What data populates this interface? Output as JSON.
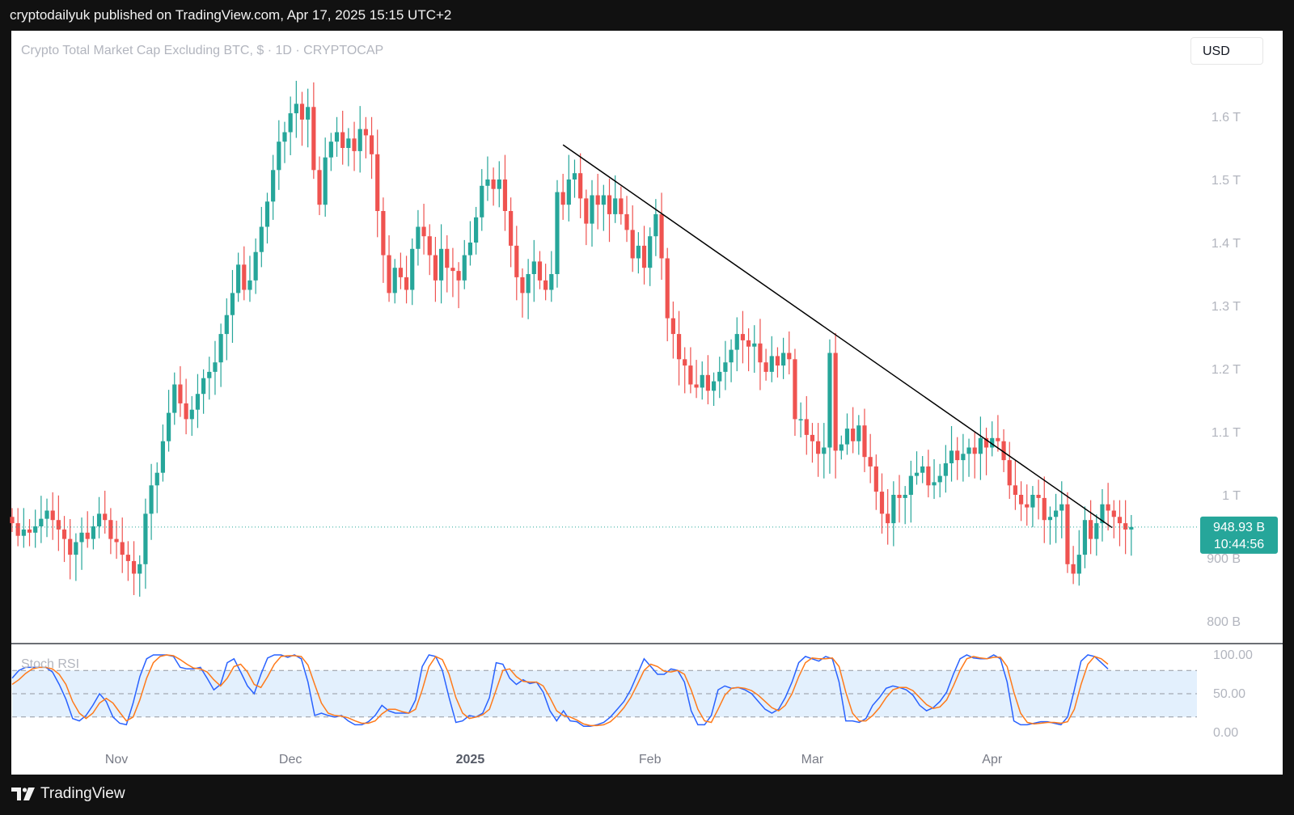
{
  "header": {
    "text": "cryptodailyuk published on TradingView.com, Apr 17, 2025 15:15 UTC+2"
  },
  "footer": {
    "brand": "TradingView",
    "logo_icon": "tradingview-logo-icon"
  },
  "toolbar": {
    "currency_label": "USD"
  },
  "colors": {
    "up": "#26a69a",
    "down": "#ef5350",
    "k_line": "#2962ff",
    "d_line": "#ff7a1a",
    "trendline": "#000000",
    "rsi_band": "#e3f0fd"
  },
  "chart_data": [
    {
      "type": "candlestick",
      "title": "Crypto Total Market Cap Excluding BTC, $ · 1D · CRYPTOCAP",
      "y_unit": "USD",
      "yticks": [
        {
          "v": 0.8,
          "label": "800 B"
        },
        {
          "v": 0.9,
          "label": "900 B"
        },
        {
          "v": 1.0,
          "label": "1 T"
        },
        {
          "v": 1.1,
          "label": "1.1 T"
        },
        {
          "v": 1.2,
          "label": "1.2 T"
        },
        {
          "v": 1.3,
          "label": "1.3 T"
        },
        {
          "v": 1.4,
          "label": "1.4 T"
        },
        {
          "v": 1.5,
          "label": "1.5 T"
        },
        {
          "v": 1.6,
          "label": "1.6 T"
        }
      ],
      "ylim": [
        0.775,
        1.685
      ],
      "y_scale": "trillions USD",
      "xticks": [
        {
          "i": 18,
          "label": "Nov",
          "bold": false
        },
        {
          "i": 48,
          "label": "Dec",
          "bold": false
        },
        {
          "i": 79,
          "label": "2025",
          "bold": true
        },
        {
          "i": 110,
          "label": "Feb",
          "bold": false
        },
        {
          "i": 138,
          "label": "Mar",
          "bold": false
        },
        {
          "i": 169,
          "label": "Apr",
          "bold": false
        }
      ],
      "last_price": {
        "value": 0.94893,
        "label": "948.93 B",
        "countdown": "10:44:56"
      },
      "trendline": {
        "from": {
          "i": 95,
          "v": 1.555
        },
        "to": {
          "i": 189,
          "v": 0.948
        }
      },
      "closes": [
        0.955,
        0.935,
        0.945,
        0.94,
        0.95,
        0.962,
        0.975,
        0.96,
        0.945,
        0.93,
        0.905,
        0.925,
        0.94,
        0.93,
        0.95,
        0.97,
        0.96,
        0.93,
        0.925,
        0.905,
        0.895,
        0.875,
        0.89,
        0.97,
        1.015,
        1.035,
        1.085,
        1.13,
        1.175,
        1.145,
        1.12,
        1.135,
        1.16,
        1.185,
        1.195,
        1.21,
        1.255,
        1.285,
        1.32,
        1.365,
        1.325,
        1.34,
        1.385,
        1.425,
        1.465,
        1.515,
        1.56,
        1.575,
        1.605,
        1.62,
        1.595,
        1.615,
        1.515,
        1.46,
        1.535,
        1.56,
        1.575,
        1.55,
        1.565,
        1.545,
        1.58,
        1.57,
        1.54,
        1.45,
        1.38,
        1.32,
        1.36,
        1.345,
        1.325,
        1.39,
        1.425,
        1.41,
        1.38,
        1.34,
        1.39,
        1.36,
        1.355,
        1.34,
        1.38,
        1.4,
        1.44,
        1.49,
        1.5,
        1.485,
        1.5,
        1.45,
        1.395,
        1.345,
        1.32,
        1.35,
        1.37,
        1.34,
        1.325,
        1.35,
        1.48,
        1.46,
        1.5,
        1.51,
        1.47,
        1.43,
        1.475,
        1.46,
        1.475,
        1.445,
        1.47,
        1.445,
        1.42,
        1.375,
        1.395,
        1.36,
        1.41,
        1.445,
        1.375,
        1.28,
        1.255,
        1.215,
        1.205,
        1.175,
        1.17,
        1.19,
        1.165,
        1.18,
        1.195,
        1.21,
        1.23,
        1.255,
        1.245,
        1.235,
        1.24,
        1.21,
        1.195,
        1.22,
        1.205,
        1.225,
        1.215,
        1.12,
        1.12,
        1.095,
        1.085,
        1.065,
        1.075,
        1.225,
        1.07,
        1.08,
        1.105,
        1.085,
        1.11,
        1.06,
        1.045,
        1.005,
        0.97,
        0.955,
        1.0,
        0.995,
        1.0,
        1.03,
        1.035,
        1.045,
        1.015,
        1.02,
        1.03,
        1.05,
        1.07,
        1.055,
        1.065,
        1.075,
        1.065,
        1.09,
        1.075,
        1.09,
        1.085,
        1.055,
        1.015,
        1.0,
        0.985,
        0.98,
        1.0,
        0.995,
        0.96,
        0.965,
        0.975,
        0.985,
        0.89,
        0.875,
        0.905,
        0.96,
        0.93,
        0.955,
        0.985,
        0.975,
        0.965,
        0.955,
        0.945,
        0.949
      ],
      "wick": 0.014
    },
    {
      "type": "line",
      "title": "Stoch RSI",
      "ylim": [
        0,
        100
      ],
      "yticks": [
        {
          "v": 100,
          "label": "100.00"
        },
        {
          "v": 50,
          "label": "50.00"
        },
        {
          "v": 0,
          "label": "0.00"
        }
      ],
      "band": [
        20,
        80
      ],
      "series": [
        {
          "key": "k",
          "values": [
            70,
            80,
            84,
            84,
            84,
            84,
            78,
            62,
            43,
            18,
            15,
            22,
            35,
            50,
            40,
            20,
            12,
            10,
            38,
            72,
            95,
            100,
            100,
            100,
            98,
            84,
            82,
            82,
            84,
            70,
            55,
            62,
            90,
            95,
            78,
            60,
            50,
            75,
            96,
            100,
            100,
            97,
            100,
            95,
            65,
            22,
            25,
            22,
            20,
            22,
            15,
            10,
            10,
            14,
            22,
            35,
            28,
            25,
            25,
            25,
            42,
            85,
            100,
            98,
            80,
            45,
            13,
            15,
            22,
            20,
            25,
            45,
            90,
            88,
            70,
            62,
            68,
            63,
            65,
            52,
            28,
            15,
            28,
            15,
            14,
            8,
            8,
            10,
            13,
            20,
            30,
            40,
            55,
            75,
            95,
            85,
            75,
            75,
            82,
            80,
            65,
            28,
            10,
            10,
            22,
            55,
            60,
            57,
            58,
            55,
            50,
            40,
            30,
            25,
            30,
            45,
            65,
            90,
            98,
            95,
            92,
            98,
            95,
            65,
            15,
            15,
            13,
            18,
            35,
            45,
            57,
            60,
            58,
            55,
            48,
            35,
            28,
            32,
            40,
            52,
            75,
            95,
            100,
            96,
            95,
            95,
            100,
            95,
            65,
            15,
            10,
            10,
            12,
            14,
            14,
            12,
            10,
            20,
            55,
            92,
            100,
            98,
            90,
            82
          ]
        },
        {
          "key": "d",
          "values": [
            62,
            68,
            76,
            82,
            84,
            84,
            82,
            75,
            62,
            40,
            25,
            18,
            25,
            38,
            44,
            38,
            26,
            15,
            20,
            42,
            70,
            90,
            98,
            100,
            99,
            94,
            88,
            83,
            82,
            78,
            68,
            60,
            70,
            85,
            88,
            78,
            62,
            58,
            72,
            88,
            98,
            99,
            99,
            98,
            87,
            62,
            38,
            25,
            22,
            21,
            19,
            15,
            12,
            12,
            15,
            24,
            30,
            30,
            27,
            25,
            30,
            55,
            85,
            98,
            94,
            75,
            45,
            25,
            18,
            20,
            23,
            30,
            55,
            80,
            82,
            72,
            66,
            65,
            65,
            60,
            45,
            28,
            22,
            20,
            16,
            11,
            9,
            9,
            10,
            14,
            22,
            32,
            45,
            62,
            80,
            88,
            85,
            79,
            78,
            80,
            75,
            55,
            30,
            15,
            13,
            30,
            48,
            57,
            58,
            57,
            54,
            48,
            40,
            32,
            28,
            35,
            50,
            72,
            90,
            96,
            95,
            95,
            96,
            85,
            52,
            25,
            15,
            15,
            22,
            32,
            45,
            55,
            58,
            58,
            54,
            45,
            36,
            31,
            33,
            42,
            60,
            80,
            95,
            98,
            96,
            95,
            97,
            97,
            85,
            52,
            25,
            13,
            11,
            12,
            13,
            13,
            12,
            14,
            30,
            62,
            88,
            98,
            95,
            88
          ]
        }
      ]
    }
  ]
}
